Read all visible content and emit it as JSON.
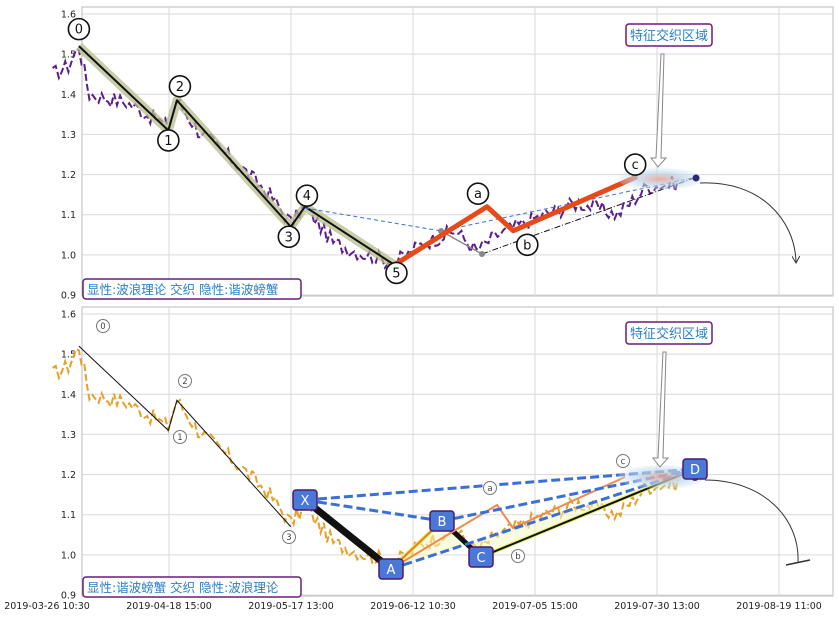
{
  "chart_data": [
    {
      "type": "line",
      "panel": "top",
      "ylim": [
        0.9,
        1.6
      ],
      "yticks": [
        "0.9",
        "1.0",
        "1.1",
        "1.2",
        "1.3",
        "1.4",
        "1.5",
        "1.6"
      ],
      "callout": "特征交织区域",
      "legend_box": "显性:波浪理论 交织 隐性:谐波螃蟹",
      "wave_points": [
        {
          "label": "0",
          "x": "2019-04-01",
          "y": 1.52
        },
        {
          "label": "1",
          "x": "2019-04-18",
          "y": 1.31
        },
        {
          "label": "2",
          "x": "2019-04-20",
          "y": 1.385
        },
        {
          "label": "3",
          "x": "2019-05-17",
          "y": 1.07
        },
        {
          "label": "4",
          "x": "2019-05-20",
          "y": 1.12
        },
        {
          "label": "5",
          "x": "2019-06-08",
          "y": 0.975
        }
      ],
      "correction_points": [
        {
          "label": "a",
          "x": "2019-06-26",
          "y": 1.12
        },
        {
          "label": "b",
          "x": "2019-07-01",
          "y": 1.06
        },
        {
          "label": "c",
          "x": "2019-07-26",
          "y": 1.195
        }
      ]
    },
    {
      "type": "line",
      "panel": "bottom",
      "ylim": [
        0.9,
        1.6
      ],
      "yticks": [
        "0.9",
        "1.0",
        "1.1",
        "1.2",
        "1.3",
        "1.4",
        "1.5",
        "1.6"
      ],
      "xticks": [
        "2019-03-26 10:30",
        "2019-04-18 15:00",
        "2019-05-17 13:00",
        "2019-06-12 10:30",
        "2019-07-05 15:00",
        "2019-07-30 13:00",
        "2019-08-19 11:00"
      ],
      "callout": "特征交织区域",
      "legend_box": "显性:谐波螃蟹 交织 隐性:波浪理论",
      "wave_labels": [
        "0",
        "1",
        "2",
        "3",
        "a",
        "b",
        "c"
      ],
      "harmonic_points": [
        {
          "label": "X",
          "x": "2019-05-20",
          "y": 1.12
        },
        {
          "label": "A",
          "x": "2019-06-08",
          "y": 0.975
        },
        {
          "label": "B",
          "x": "2019-06-18",
          "y": 1.07
        },
        {
          "label": "C",
          "x": "2019-06-24",
          "y": 1.0
        },
        {
          "label": "D",
          "x": "2019-08-02",
          "y": 1.2
        }
      ]
    }
  ]
}
